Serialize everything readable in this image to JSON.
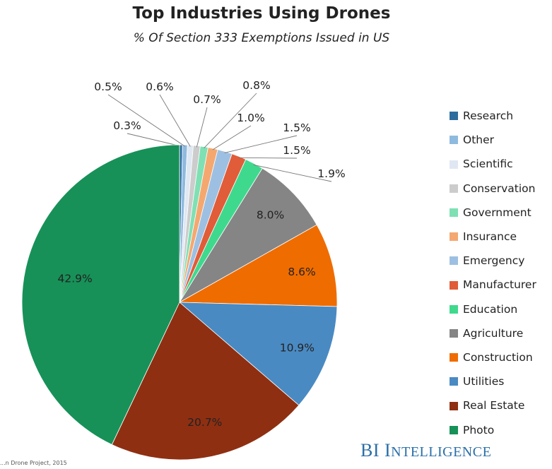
{
  "chart_data": {
    "type": "pie",
    "title": "Top Industries Using Drones",
    "subtitle": "% Of Section 333 Exemptions Issued in US",
    "slices": [
      {
        "name": "Research",
        "value": 0.3,
        "label": "0.3%",
        "color": "#2e6c9e"
      },
      {
        "name": "Other",
        "value": 0.5,
        "label": "0.5%",
        "color": "#8fbadf"
      },
      {
        "name": "Scientific",
        "value": 0.6,
        "label": "0.6%",
        "color": "#dfe8f2"
      },
      {
        "name": "Conservation",
        "value": 0.7,
        "label": "0.7%",
        "color": "#cccccc"
      },
      {
        "name": "Government",
        "value": 0.8,
        "label": "0.8%",
        "color": "#7fe0b4"
      },
      {
        "name": "Insurance",
        "value": 1.0,
        "label": "1.0%",
        "color": "#f4a870"
      },
      {
        "name": "Emergency",
        "value": 1.5,
        "label": "1.5%",
        "color": "#9dc0e2"
      },
      {
        "name": "Manufacturer",
        "value": 1.5,
        "label": "1.5%",
        "color": "#e15c38"
      },
      {
        "name": "Education",
        "value": 1.9,
        "label": "1.9%",
        "color": "#3fd98e"
      },
      {
        "name": "Agriculture",
        "value": 8.0,
        "label": "8.0%",
        "color": "#858585"
      },
      {
        "name": "Construction",
        "value": 8.6,
        "label": "8.6%",
        "color": "#ef6c00"
      },
      {
        "name": "Utilities",
        "value": 10.9,
        "label": "10.9%",
        "color": "#4a8ac2"
      },
      {
        "name": "Real Estate",
        "value": 20.7,
        "label": "20.7%",
        "color": "#8f2f12"
      },
      {
        "name": "Photo",
        "value": 42.9,
        "label": "42.9%",
        "color": "#179158"
      }
    ],
    "legend_position": "right"
  },
  "brand": {
    "big1": "BI ",
    "small1": "NTELLIGENCE",
    "prefix": "I"
  },
  "source_text": "...n Drone Project, 2015"
}
